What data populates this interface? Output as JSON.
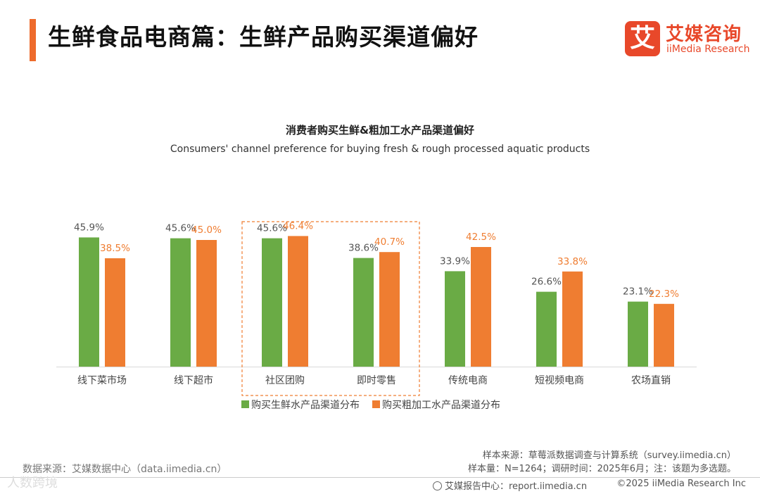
{
  "header": {
    "title": "生鲜食品电商篇：生鲜产品购买渠道偏好",
    "logo_mark": "艾",
    "logo_cn": "艾媒咨询",
    "logo_en": "iiMedia Research",
    "accent_color": "#ee6b2c"
  },
  "chart_data": {
    "type": "bar",
    "title": "消费者购买生鲜&粗加工水产品渠道偏好",
    "subtitle": "Consumers' channel preference for buying fresh & rough processed aquatic products",
    "categories": [
      "线下菜市场",
      "线下超市",
      "社区团购",
      "即时零售",
      "传统电商",
      "短视频电商",
      "农场直销"
    ],
    "series": [
      {
        "name": "购买生鲜水产品渠道分布",
        "color": "#6aab45",
        "values": [
          45.9,
          45.6,
          45.6,
          38.6,
          33.9,
          26.6,
          23.1
        ]
      },
      {
        "name": "购买粗加工水产品渠道分布",
        "color": "#ef7d31",
        "values": [
          38.5,
          45.0,
          46.4,
          40.7,
          42.5,
          33.8,
          22.3
        ]
      }
    ],
    "value_suffix": "%",
    "ylim": [
      0,
      50
    ],
    "highlighted_categories": [
      "社区团购",
      "即时零售"
    ],
    "legend_position": "bottom"
  },
  "footer": {
    "source": "数据来源：艾媒数据中心（data.iimedia.cn）",
    "sample_source": "样本来源：草莓派数据调查与计算系统（survey.iimedia.cn）",
    "sample_info": "样本量：N=1264；调研时间：2025年6月；注：该题为多选题。",
    "report_center": "艾媒报告中心：report.iimedia.cn",
    "copyright": "©2025  iiMedia Research  Inc",
    "watermark": "人数跨境"
  }
}
